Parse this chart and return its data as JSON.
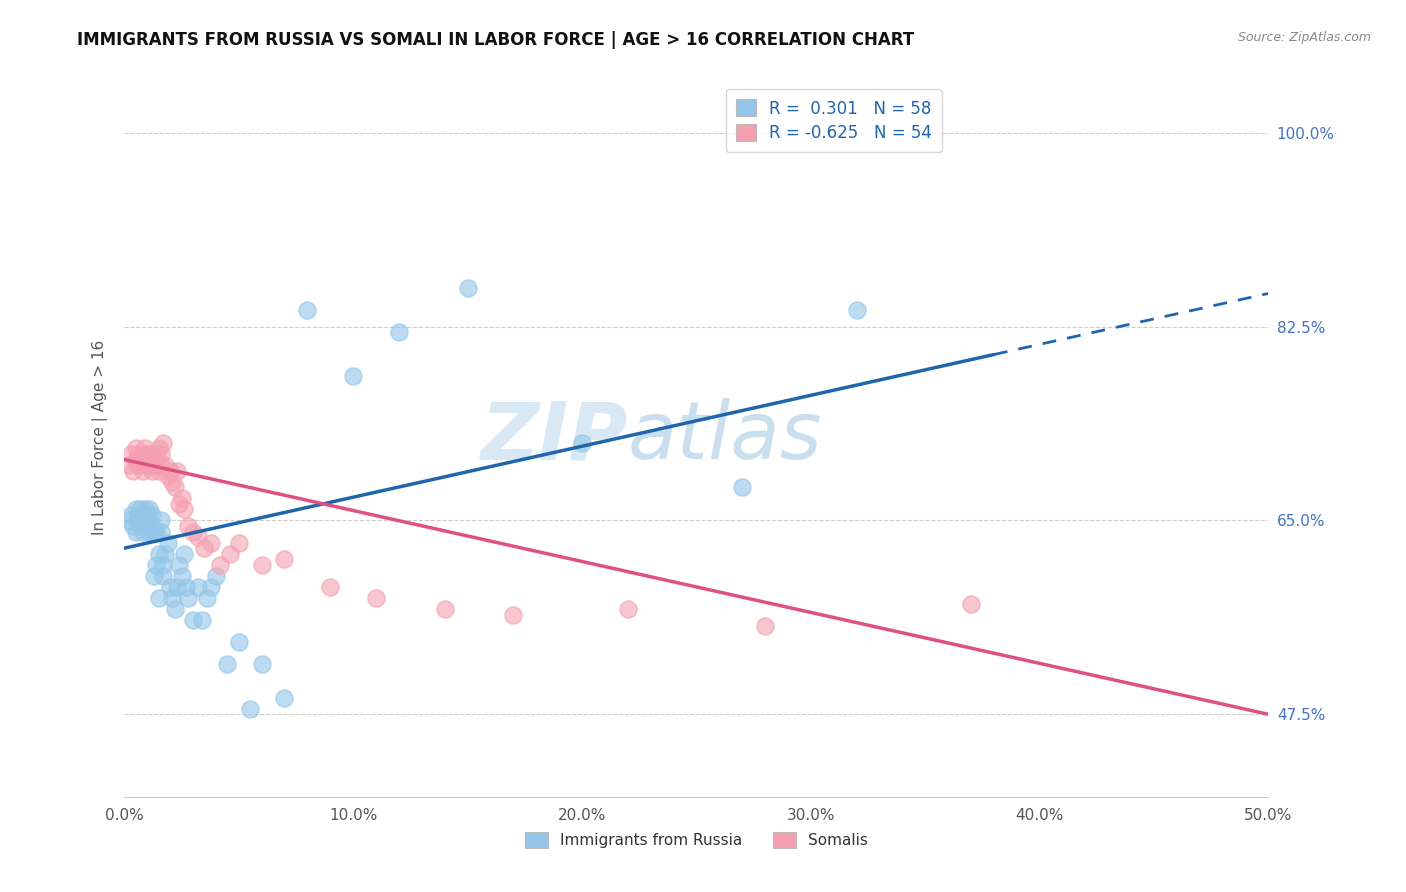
{
  "title": "IMMIGRANTS FROM RUSSIA VS SOMALI IN LABOR FORCE | AGE > 16 CORRELATION CHART",
  "source": "Source: ZipAtlas.com",
  "ylabel": "In Labor Force | Age > 16",
  "ytick_labels": [
    "47.5%",
    "65.0%",
    "82.5%",
    "100.0%"
  ],
  "ytick_values": [
    0.475,
    0.65,
    0.825,
    1.0
  ],
  "watermark_zip": "ZIP",
  "watermark_atlas": "atlas",
  "legend_blue_label": "Immigrants from Russia",
  "legend_pink_label": "Somalis",
  "r_blue": 0.301,
  "n_blue": 58,
  "r_pink": -0.625,
  "n_pink": 54,
  "blue_color": "#93c6e8",
  "pink_color": "#f4a0b0",
  "blue_line_color": "#2166ac",
  "pink_line_color": "#e05080",
  "blue_line_x0": 0.0,
  "blue_line_y0": 0.625,
  "blue_line_x1": 0.5,
  "blue_line_y1": 0.855,
  "blue_line_solid_end": 0.38,
  "pink_line_x0": 0.0,
  "pink_line_y0": 0.705,
  "pink_line_x1": 0.5,
  "pink_line_y1": 0.475,
  "blue_scatter_x": [
    0.002,
    0.003,
    0.004,
    0.005,
    0.005,
    0.006,
    0.006,
    0.007,
    0.007,
    0.008,
    0.008,
    0.009,
    0.009,
    0.01,
    0.01,
    0.011,
    0.011,
    0.012,
    0.012,
    0.013,
    0.013,
    0.014,
    0.014,
    0.015,
    0.015,
    0.016,
    0.016,
    0.017,
    0.017,
    0.018,
    0.019,
    0.02,
    0.021,
    0.022,
    0.023,
    0.024,
    0.025,
    0.026,
    0.027,
    0.028,
    0.03,
    0.032,
    0.034,
    0.036,
    0.038,
    0.04,
    0.045,
    0.05,
    0.055,
    0.06,
    0.07,
    0.08,
    0.1,
    0.12,
    0.15,
    0.2,
    0.27,
    0.32
  ],
  "blue_scatter_y": [
    0.65,
    0.655,
    0.645,
    0.66,
    0.64,
    0.655,
    0.65,
    0.66,
    0.645,
    0.655,
    0.64,
    0.66,
    0.65,
    0.645,
    0.655,
    0.66,
    0.64,
    0.655,
    0.645,
    0.64,
    0.6,
    0.64,
    0.61,
    0.62,
    0.58,
    0.65,
    0.64,
    0.61,
    0.6,
    0.62,
    0.63,
    0.59,
    0.58,
    0.57,
    0.59,
    0.61,
    0.6,
    0.62,
    0.59,
    0.58,
    0.56,
    0.59,
    0.56,
    0.58,
    0.59,
    0.6,
    0.52,
    0.54,
    0.48,
    0.52,
    0.49,
    0.84,
    0.78,
    0.82,
    0.86,
    0.72,
    0.68,
    0.84
  ],
  "pink_scatter_x": [
    0.002,
    0.003,
    0.004,
    0.005,
    0.005,
    0.006,
    0.006,
    0.007,
    0.007,
    0.008,
    0.008,
    0.009,
    0.009,
    0.01,
    0.01,
    0.011,
    0.011,
    0.012,
    0.012,
    0.013,
    0.013,
    0.014,
    0.014,
    0.015,
    0.015,
    0.016,
    0.016,
    0.017,
    0.018,
    0.019,
    0.02,
    0.021,
    0.022,
    0.023,
    0.024,
    0.025,
    0.026,
    0.028,
    0.03,
    0.032,
    0.035,
    0.038,
    0.042,
    0.046,
    0.05,
    0.06,
    0.07,
    0.09,
    0.11,
    0.14,
    0.17,
    0.22,
    0.28,
    0.37
  ],
  "pink_scatter_y": [
    0.7,
    0.71,
    0.695,
    0.705,
    0.715,
    0.7,
    0.71,
    0.7,
    0.705,
    0.71,
    0.695,
    0.7,
    0.715,
    0.7,
    0.71,
    0.705,
    0.7,
    0.695,
    0.71,
    0.7,
    0.705,
    0.71,
    0.7,
    0.715,
    0.695,
    0.7,
    0.71,
    0.72,
    0.7,
    0.69,
    0.695,
    0.685,
    0.68,
    0.695,
    0.665,
    0.67,
    0.66,
    0.645,
    0.64,
    0.635,
    0.625,
    0.63,
    0.61,
    0.62,
    0.63,
    0.61,
    0.615,
    0.59,
    0.58,
    0.57,
    0.565,
    0.57,
    0.555,
    0.575
  ],
  "xlim": [
    0.0,
    0.5
  ],
  "ylim": [
    0.4,
    1.05
  ],
  "xtick_values": [
    0.0,
    0.1,
    0.2,
    0.3,
    0.4,
    0.5
  ],
  "xtick_labels": [
    "0.0%",
    "10.0%",
    "20.0%",
    "30.0%",
    "40.0%",
    "50.0%"
  ]
}
